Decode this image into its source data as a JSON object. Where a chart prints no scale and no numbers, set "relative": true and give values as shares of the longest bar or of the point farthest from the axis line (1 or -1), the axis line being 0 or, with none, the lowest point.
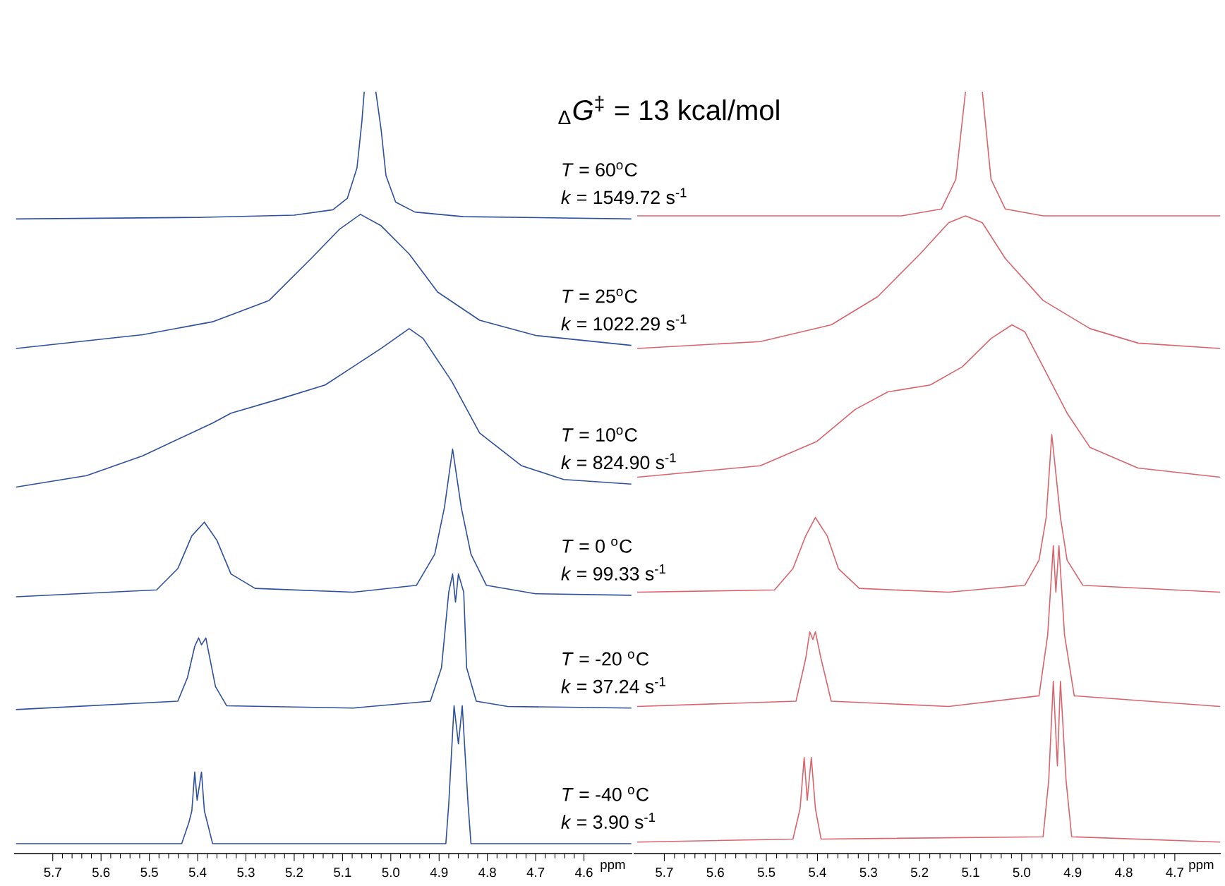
{
  "chart_data": [
    {
      "type": "line",
      "relative": true,
      "title": "$_{Δ}$*G*$^{‡}$ = 13 kcal/mol",
      "xlabel": "ppm",
      "xlim": [
        5.78,
        4.5
      ],
      "xticks": [
        5.7,
        5.6,
        5.5,
        5.4,
        5.3,
        5.2,
        5.1,
        {
          "value": 5,
          "label": "5.0"
        },
        4.9,
        4.8,
        4.7,
        4.6
      ],
      "annotations": [
        "*T* = 60$^{o}$C",
        "*k* = 1549.72 s$^{-1}$",
        "*T* = 25$^{o}$C",
        "*k* = 1022.29 s$^{-1}$",
        "*T* = 10$^{o}$C",
        "*k* = 824.90 s$^{-1}$",
        "*T* = 0 $^{o}$C",
        "*k* = 99.33 s$^{-1}$",
        "*T* = -20 $^{o}$C",
        "*k* = 37.24 s$^{-1}$",
        "*T* = -40 $^{o}$C",
        "*k* = 3.90 s$^{-1}$"
      ],
      "series": [
        {
          "color": "#2e4f9e",
          "x": [
            5.776,
            5.4,
            5.2,
            5.12,
            5.09,
            5.07,
            5.06,
            5.055,
            5.043,
            5.031,
            5.02,
            5.01,
            4.99,
            4.95,
            4.85,
            4.502
          ],
          "values": [
            0.833,
            0.835,
            0.838,
            0.845,
            0.86,
            0.9,
            0.96,
            1.0,
            null,
            1.0,
            0.95,
            0.89,
            0.855,
            0.842,
            0.836,
            0.833
          ]
        },
        {
          "color": "#2e4f9e",
          "x": [
            5.776,
            5.514,
            5.369,
            5.252,
            5.165,
            5.107,
            5.063,
            5.02,
            4.962,
            4.903,
            4.816,
            4.7,
            4.502
          ],
          "values": [
            0.663,
            0.681,
            0.698,
            0.726,
            0.781,
            0.819,
            0.839,
            0.824,
            0.787,
            0.737,
            0.7,
            0.68,
            0.667
          ]
        },
        {
          "color": "#2e4f9e",
          "x": [
            5.776,
            5.63,
            5.514,
            5.369,
            5.331,
            5.223,
            5.136,
            5.078,
            5.02,
            4.962,
            4.933,
            4.874,
            4.816,
            4.729,
            4.642,
            4.502
          ],
          "values": [
            0.481,
            0.496,
            0.522,
            0.565,
            0.578,
            0.598,
            0.615,
            0.639,
            0.663,
            0.689,
            0.676,
            0.62,
            0.552,
            0.509,
            0.491,
            0.485
          ]
        },
        {
          "color": "#2e4f9e",
          "x": [
            5.776,
            5.485,
            5.441,
            5.412,
            5.386,
            5.36,
            5.331,
            5.281,
            5.078,
            4.947,
            4.909,
            4.889,
            4.872,
            4.854,
            4.834,
            4.802,
            4.7,
            4.502
          ],
          "values": [
            0.337,
            0.346,
            0.374,
            0.417,
            0.435,
            0.411,
            0.367,
            0.348,
            0.343,
            0.352,
            0.393,
            0.454,
            0.531,
            0.454,
            0.393,
            0.352,
            0.341,
            0.339
          ]
        },
        {
          "color": "#2e4f9e",
          "x": [
            5.776,
            5.441,
            5.421,
            5.406,
            5.398,
            5.392,
            5.383,
            5.374,
            5.363,
            5.34,
            5.078,
            4.918,
            4.895,
            4.88,
            4.872,
            4.866,
            4.86,
            4.849,
            4.843,
            4.823,
            4.758,
            4.502
          ],
          "values": [
            0.189,
            0.2,
            0.231,
            0.272,
            0.283,
            0.274,
            0.283,
            0.254,
            0.219,
            0.194,
            0.191,
            0.2,
            0.244,
            0.343,
            0.367,
            0.33,
            0.367,
            0.343,
            0.244,
            0.2,
            0.193,
            0.191
          ]
        },
        {
          "color": "#2e4f9e",
          "x": [
            5.776,
            5.433,
            5.418,
            5.412,
            5.406,
            5.401,
            5.392,
            5.386,
            5.38,
            5.369,
            5.078,
            4.886,
            4.88,
            4.869,
            4.86,
            4.852,
            4.84,
            4.834,
            4.502
          ],
          "values": [
            0.013,
            0.013,
            0.041,
            0.056,
            0.107,
            0.07,
            0.107,
            0.056,
            0.041,
            0.013,
            0.013,
            0.013,
            0.065,
            0.194,
            0.144,
            0.194,
            0.065,
            0.013,
            0.013
          ]
        }
      ]
    },
    {
      "type": "line",
      "relative": true,
      "xlabel": "ppm",
      "xlim": [
        5.76,
        4.61
      ],
      "xticks": [
        5.7,
        5.6,
        5.5,
        5.4,
        5.3,
        5.2,
        5.1,
        {
          "value": 5,
          "label": "5.0"
        },
        4.9,
        4.8,
        4.7
      ],
      "series": [
        {
          "color": "#d9646c",
          "x": [
            5.753,
            5.235,
            5.157,
            5.129,
            5.11,
            5.093,
            5.077,
            5.06,
            5.032,
            4.958,
            4.611
          ],
          "values": [
            0.837,
            0.837,
            0.846,
            0.885,
            1.0,
            null,
            1.0,
            0.885,
            0.846,
            0.837,
            0.837
          ]
        },
        {
          "color": "#d9646c",
          "x": [
            5.753,
            5.512,
            5.373,
            5.282,
            5.199,
            5.143,
            5.11,
            5.077,
            5.032,
            4.958,
            4.866,
            4.772,
            4.611
          ],
          "values": [
            0.663,
            0.672,
            0.694,
            0.731,
            0.787,
            0.828,
            0.837,
            0.828,
            0.781,
            0.726,
            0.689,
            0.67,
            0.663
          ]
        },
        {
          "color": "#d9646c",
          "x": [
            5.753,
            5.512,
            5.401,
            5.326,
            5.262,
            5.179,
            5.116,
            5.06,
            5.019,
            4.994,
            4.958,
            4.911,
            4.866,
            4.772,
            4.611
          ],
          "values": [
            0.494,
            0.509,
            0.541,
            0.583,
            0.606,
            0.615,
            0.639,
            0.676,
            0.694,
            0.685,
            0.639,
            0.578,
            0.533,
            0.506,
            0.494
          ]
        },
        {
          "color": "#d9646c",
          "x": [
            5.753,
            5.484,
            5.448,
            5.423,
            5.404,
            5.381,
            5.359,
            5.318,
            5.143,
            4.994,
            4.966,
            4.952,
            4.941,
            4.924,
            4.911,
            4.88,
            4.611
          ],
          "values": [
            0.343,
            0.346,
            0.374,
            0.417,
            0.441,
            0.417,
            0.374,
            0.348,
            0.343,
            0.352,
            0.385,
            0.441,
            0.55,
            0.441,
            0.385,
            0.352,
            0.343
          ]
        },
        {
          "color": "#d9646c",
          "x": [
            5.753,
            5.442,
            5.423,
            5.415,
            5.409,
            5.404,
            5.393,
            5.373,
            5.143,
            4.966,
            4.949,
            4.938,
            4.933,
            4.927,
            4.916,
            4.897,
            4.611
          ],
          "values": [
            0.193,
            0.2,
            0.256,
            0.291,
            0.281,
            0.291,
            0.256,
            0.2,
            0.193,
            0.207,
            0.287,
            0.404,
            0.343,
            0.404,
            0.287,
            0.207,
            0.193
          ]
        },
        {
          "color": "#d9646c",
          "x": [
            5.753,
            5.448,
            5.434,
            5.426,
            5.42,
            5.412,
            5.404,
            5.393,
            4.958,
            4.947,
            4.938,
            4.93,
            4.924,
            4.913,
            4.902,
            4.611
          ],
          "values": [
            0.015,
            0.019,
            0.059,
            0.126,
            0.07,
            0.126,
            0.059,
            0.019,
            0.022,
            0.096,
            0.226,
            0.115,
            0.226,
            0.096,
            0.022,
            0.015
          ]
        }
      ]
    }
  ]
}
